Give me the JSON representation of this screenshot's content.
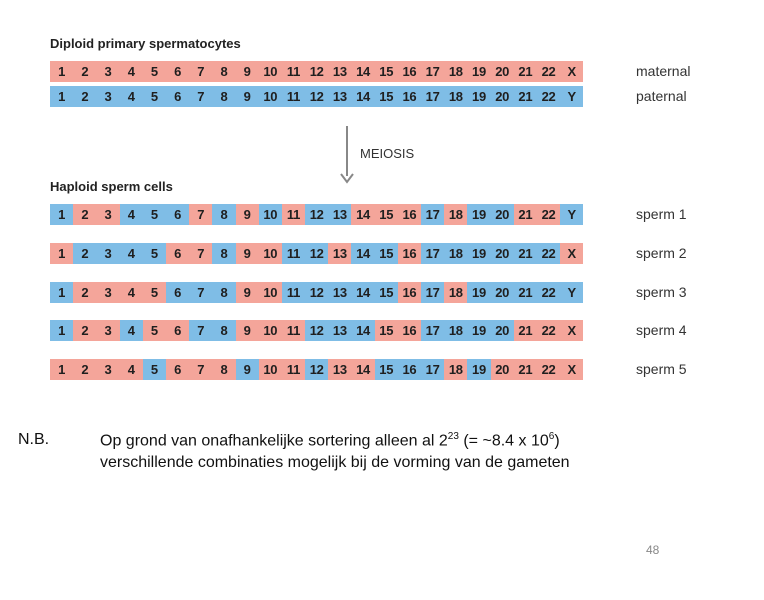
{
  "colors": {
    "maternal": "#f4a59a",
    "paternal": "#7fbde6"
  },
  "diploid_title": "Diploid primary spermatocytes",
  "haploid_title": "Haploid sperm cells",
  "arrow_label": "MEIOSIS",
  "cells": [
    "1",
    "2",
    "3",
    "4",
    "5",
    "6",
    "7",
    "8",
    "9",
    "10",
    "11",
    "12",
    "13",
    "14",
    "15",
    "16",
    "17",
    "18",
    "19",
    "20",
    "21",
    "22"
  ],
  "diploid_rows": [
    {
      "label": "maternal",
      "sex": "X",
      "pattern": "MMMMMMMMMMMMMMMMMMMMMMM"
    },
    {
      "label": "paternal",
      "sex": "Y",
      "pattern": "PPPPPPPPPPPPPPPPPPPPPPP"
    }
  ],
  "sperm_rows": [
    {
      "label": "sperm 1",
      "sex": "Y",
      "pattern": "PMMPPPMPMPMPPMMMPMPPMMP"
    },
    {
      "label": "sperm 2",
      "sex": "X",
      "pattern": "MPPPPMMPMMPPMPPMPPPPPPM"
    },
    {
      "label": "sperm 3",
      "sex": "Y",
      "pattern": "PMMMMPPPMMPPPPPMPMPPPPP"
    },
    {
      "label": "sperm 4",
      "sex": "X",
      "pattern": "PMMPMMPPMMMPPPMMPPPPMMM"
    },
    {
      "label": "sperm 5",
      "sex": "X",
      "pattern": "MMMMPMMMPMMPMMPPPMPMMMM"
    }
  ],
  "note": {
    "prefix": "N.B.",
    "line1_a": "Op grond van onafhankelijke sortering alleen al 2",
    "line1_exp": "23",
    "line1_b": "  (= ~8.4 x 10",
    "line1_exp2": "6",
    "line1_c": ")",
    "line2": "verschillende combinaties mogelijk bij de vorming van de gameten"
  },
  "page_number": "48"
}
